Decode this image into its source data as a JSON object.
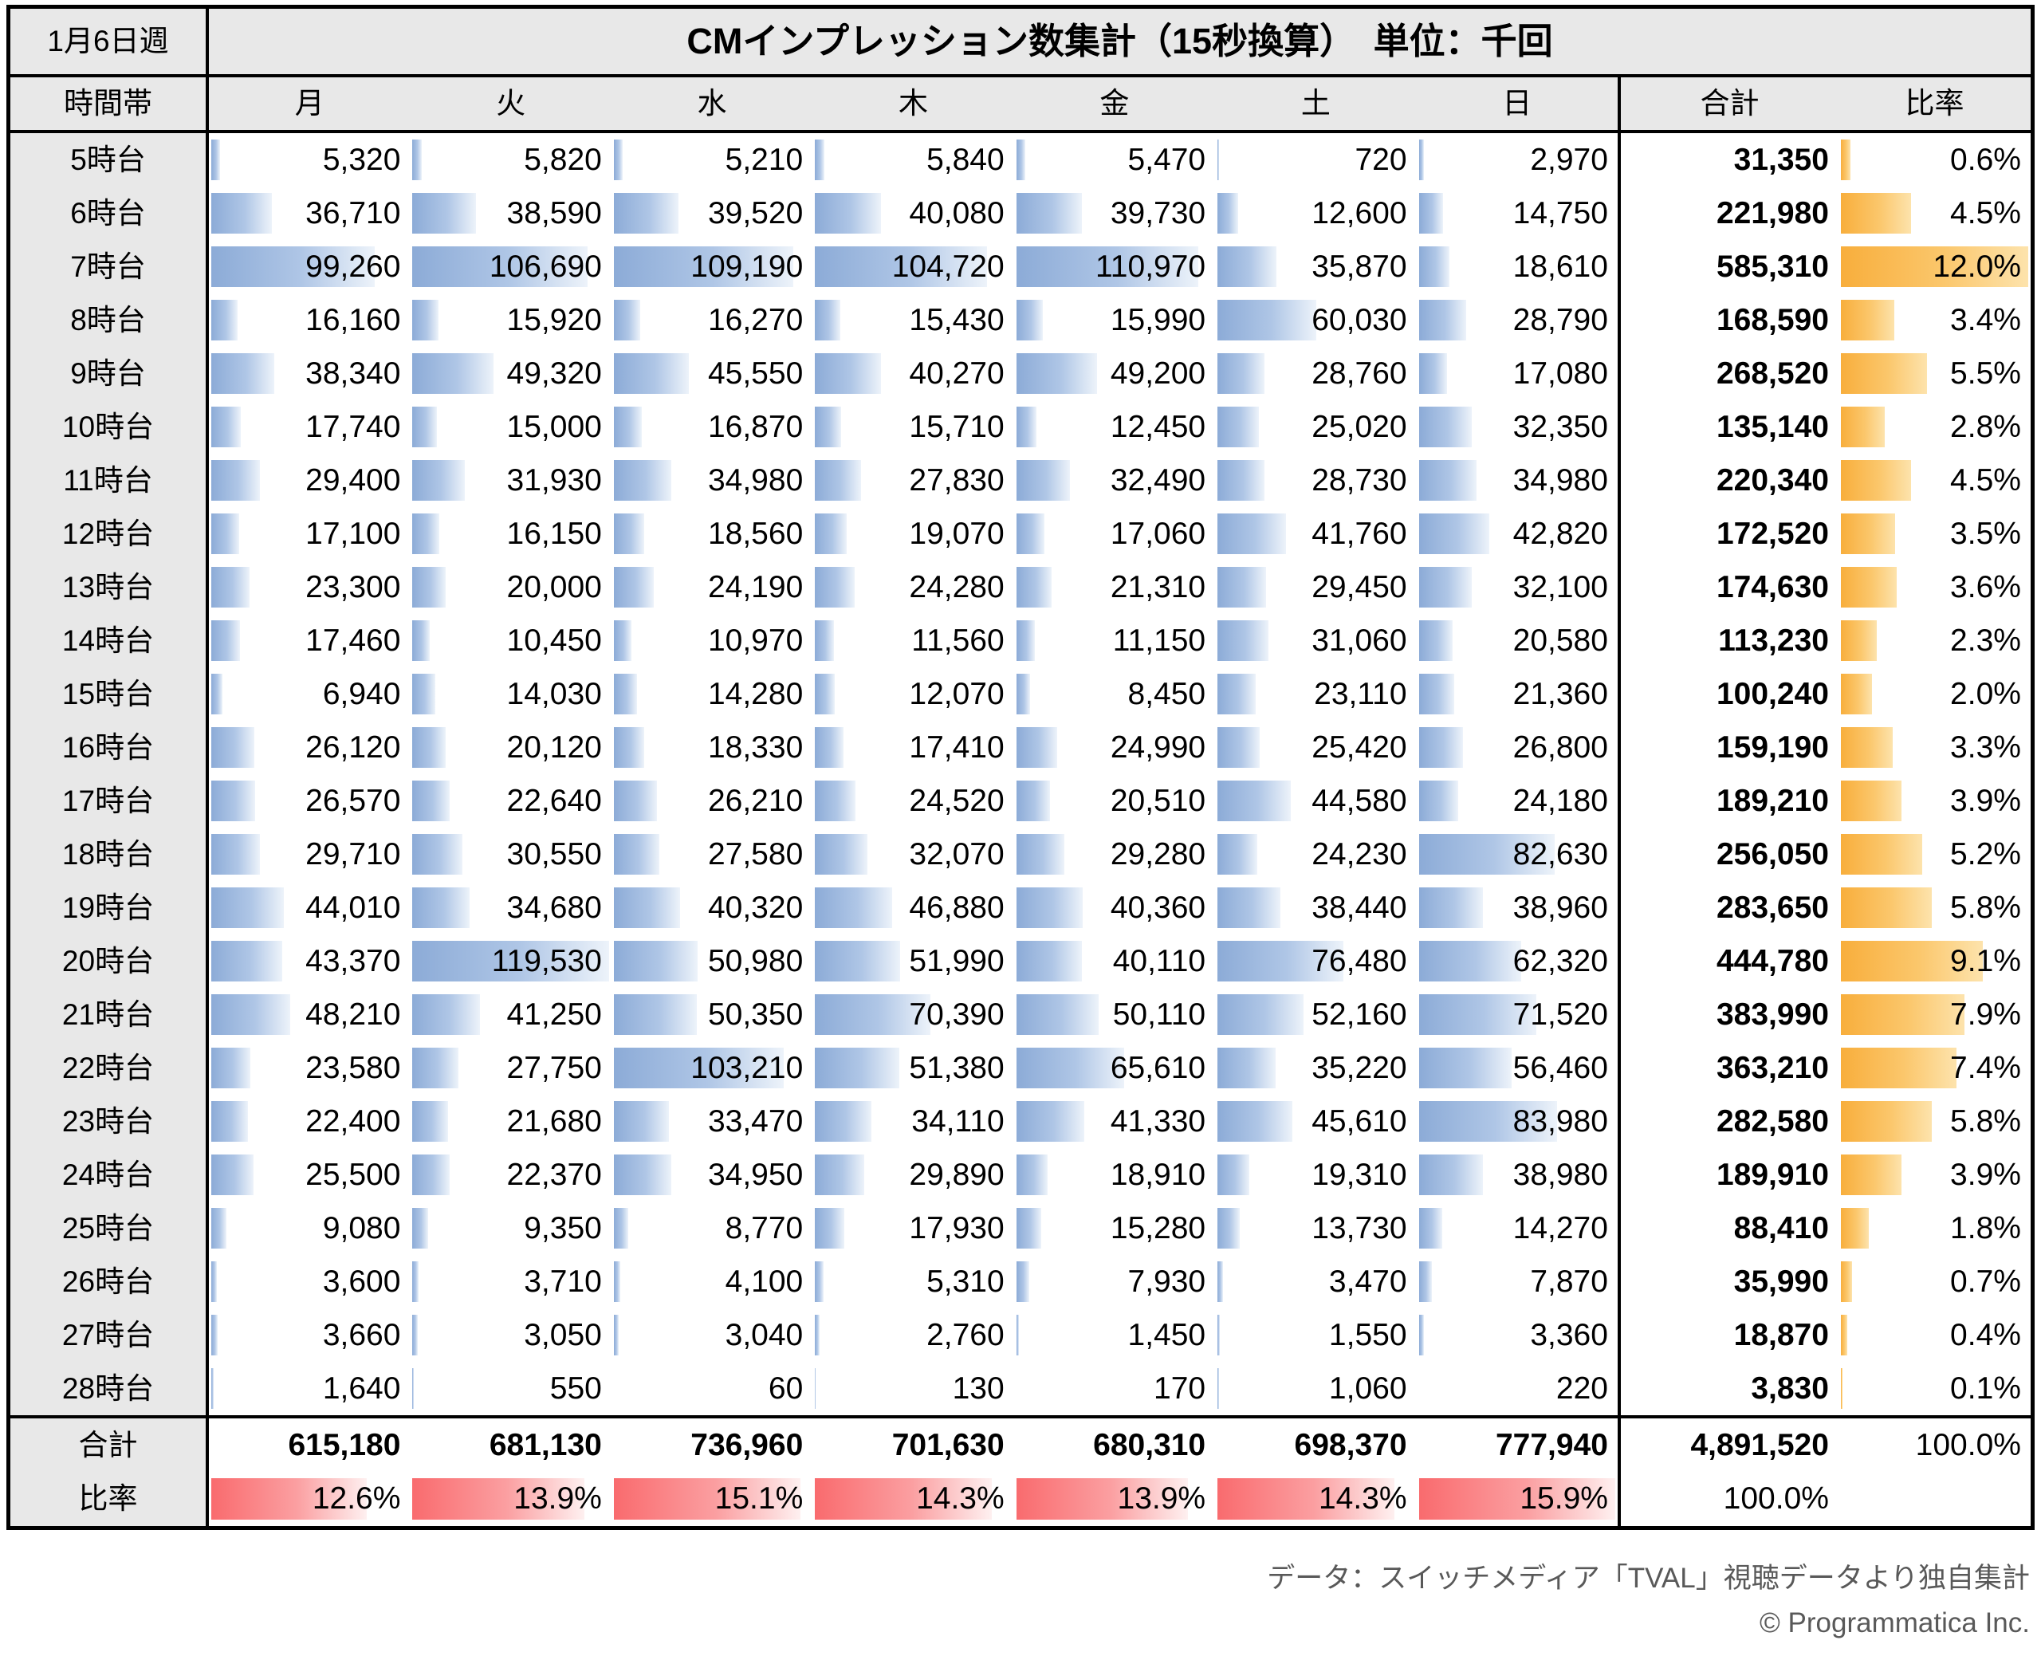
{
  "chart_data": {
    "type": "table",
    "week_label": "1月6日週",
    "title": "CMインプレッション数集計（15秒換算）　単位：千回",
    "columns": [
      "時間帯",
      "月",
      "火",
      "水",
      "木",
      "金",
      "土",
      "日",
      "合計",
      "比率"
    ],
    "rows": [
      {
        "label": "5時台",
        "values": [
          5320,
          5820,
          5210,
          5840,
          5470,
          720,
          2970
        ],
        "total": 31350,
        "pct": 0.6
      },
      {
        "label": "6時台",
        "values": [
          36710,
          38590,
          39520,
          40080,
          39730,
          12600,
          14750
        ],
        "total": 221980,
        "pct": 4.5
      },
      {
        "label": "7時台",
        "values": [
          99260,
          106690,
          109190,
          104720,
          110970,
          35870,
          18610
        ],
        "total": 585310,
        "pct": 12.0
      },
      {
        "label": "8時台",
        "values": [
          16160,
          15920,
          16270,
          15430,
          15990,
          60030,
          28790
        ],
        "total": 168590,
        "pct": 3.4
      },
      {
        "label": "9時台",
        "values": [
          38340,
          49320,
          45550,
          40270,
          49200,
          28760,
          17080
        ],
        "total": 268520,
        "pct": 5.5
      },
      {
        "label": "10時台",
        "values": [
          17740,
          15000,
          16870,
          15710,
          12450,
          25020,
          32350
        ],
        "total": 135140,
        "pct": 2.8
      },
      {
        "label": "11時台",
        "values": [
          29400,
          31930,
          34980,
          27830,
          32490,
          28730,
          34980
        ],
        "total": 220340,
        "pct": 4.5
      },
      {
        "label": "12時台",
        "values": [
          17100,
          16150,
          18560,
          19070,
          17060,
          41760,
          42820
        ],
        "total": 172520,
        "pct": 3.5
      },
      {
        "label": "13時台",
        "values": [
          23300,
          20000,
          24190,
          24280,
          21310,
          29450,
          32100
        ],
        "total": 174630,
        "pct": 3.6
      },
      {
        "label": "14時台",
        "values": [
          17460,
          10450,
          10970,
          11560,
          11150,
          31060,
          20580
        ],
        "total": 113230,
        "pct": 2.3
      },
      {
        "label": "15時台",
        "values": [
          6940,
          14030,
          14280,
          12070,
          8450,
          23110,
          21360
        ],
        "total": 100240,
        "pct": 2.0
      },
      {
        "label": "16時台",
        "values": [
          26120,
          20120,
          18330,
          17410,
          24990,
          25420,
          26800
        ],
        "total": 159190,
        "pct": 3.3
      },
      {
        "label": "17時台",
        "values": [
          26570,
          22640,
          26210,
          24520,
          20510,
          44580,
          24180
        ],
        "total": 189210,
        "pct": 3.9
      },
      {
        "label": "18時台",
        "values": [
          29710,
          30550,
          27580,
          32070,
          29280,
          24230,
          82630
        ],
        "total": 256050,
        "pct": 5.2
      },
      {
        "label": "19時台",
        "values": [
          44010,
          34680,
          40320,
          46880,
          40360,
          38440,
          38960
        ],
        "total": 283650,
        "pct": 5.8
      },
      {
        "label": "20時台",
        "values": [
          43370,
          119530,
          50980,
          51990,
          40110,
          76480,
          62320
        ],
        "total": 444780,
        "pct": 9.1
      },
      {
        "label": "21時台",
        "values": [
          48210,
          41250,
          50350,
          70390,
          50110,
          52160,
          71520
        ],
        "total": 383990,
        "pct": 7.9
      },
      {
        "label": "22時台",
        "values": [
          23580,
          27750,
          103210,
          51380,
          65610,
          35220,
          56460
        ],
        "total": 363210,
        "pct": 7.4
      },
      {
        "label": "23時台",
        "values": [
          22400,
          21680,
          33470,
          34110,
          41330,
          45610,
          83980
        ],
        "total": 282580,
        "pct": 5.8
      },
      {
        "label": "24時台",
        "values": [
          25500,
          22370,
          34950,
          29890,
          18910,
          19310,
          38980
        ],
        "total": 189910,
        "pct": 3.9
      },
      {
        "label": "25時台",
        "values": [
          9080,
          9350,
          8770,
          17930,
          15280,
          13730,
          14270
        ],
        "total": 88410,
        "pct": 1.8
      },
      {
        "label": "26時台",
        "values": [
          3600,
          3710,
          4100,
          5310,
          7930,
          3470,
          7870
        ],
        "total": 35990,
        "pct": 0.7
      },
      {
        "label": "27時台",
        "values": [
          3660,
          3050,
          3040,
          2760,
          1450,
          1550,
          3360
        ],
        "total": 18870,
        "pct": 0.4
      },
      {
        "label": "28時台",
        "values": [
          1640,
          550,
          60,
          130,
          170,
          1060,
          220
        ],
        "total": 3830,
        "pct": 0.1
      }
    ],
    "column_totals": {
      "label": "合計",
      "values": [
        615180,
        681130,
        736960,
        701630,
        680310,
        698370,
        777940
      ],
      "grand_total": 4891520,
      "pct_of_total": 100.0
    },
    "column_ratios": {
      "label": "比率",
      "values": [
        12.6,
        13.9,
        15.1,
        14.3,
        13.9,
        14.3,
        15.9
      ],
      "total_pct": 100.0
    },
    "bar_scales": {
      "blue_max": 119530,
      "orange_full_pct": 12.0,
      "red_full_pct": 15.9
    },
    "legend_position": "none",
    "grid": "section-borders-only"
  },
  "colors": {
    "header_bg": "#E8E8E8",
    "border": "#000000",
    "blue_bar": [
      "#8CABD7",
      "#AFC6E6",
      "#EDF3FA"
    ],
    "orange_bar": [
      "#F8AE3C",
      "#FBC76C",
      "#FDE3AC"
    ],
    "red_bar": [
      "#F96B6E",
      "#FB9FA1",
      "#FEF0F0"
    ],
    "footer_text": "#595959"
  },
  "footer": {
    "source": "データ：スイッチメディア「TVAL」視聴データより独自集計",
    "copyright": "© Programmatica Inc."
  }
}
